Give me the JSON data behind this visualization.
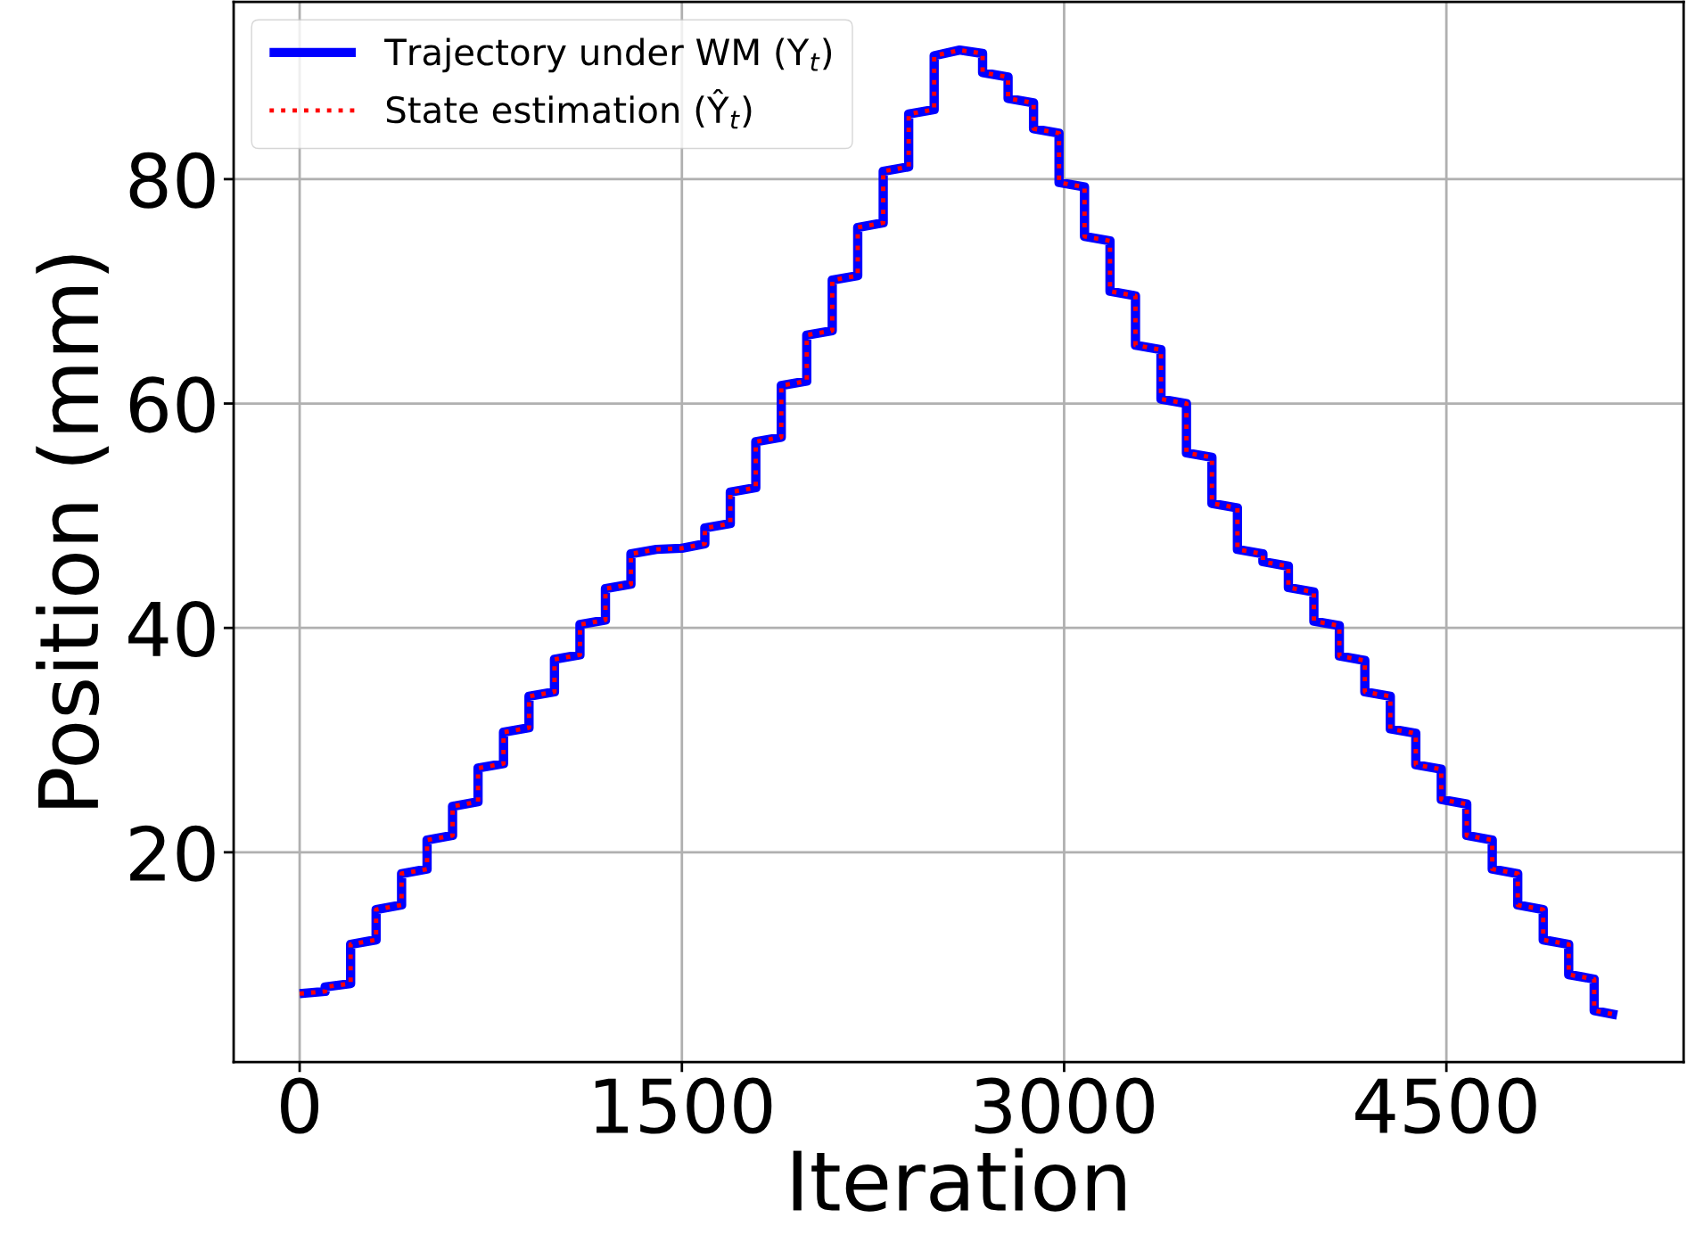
{
  "chart_data": {
    "type": "line",
    "xlabel": "Iteration",
    "ylabel": "Position (mm)",
    "x": [
      0,
      100,
      100,
      200,
      200,
      300,
      300,
      400,
      400,
      500,
      500,
      600,
      600,
      700,
      700,
      800,
      800,
      900,
      900,
      1000,
      1000,
      1100,
      1100,
      1200,
      1200,
      1300,
      1300,
      1400,
      1500,
      1590,
      1590,
      1690,
      1690,
      1790,
      1790,
      1890,
      1890,
      1990,
      1990,
      2090,
      2090,
      2190,
      2190,
      2290,
      2290,
      2390,
      2390,
      2490,
      2490,
      2590,
      2680,
      2680,
      2780,
      2780,
      2880,
      2880,
      2980,
      2980,
      3080,
      3080,
      3180,
      3180,
      3280,
      3280,
      3380,
      3380,
      3480,
      3480,
      3580,
      3580,
      3680,
      3680,
      3780,
      3780,
      3880,
      3880,
      3980,
      3980,
      4080,
      4080,
      4180,
      4180,
      4280,
      4280,
      4380,
      4380,
      4480,
      4480,
      4580,
      4580,
      4680,
      4680,
      4780,
      4780,
      4880,
      4880,
      4980,
      4980,
      5080,
      5080,
      5170
    ],
    "series": [
      {
        "name": "Trajectory under WM (Y$_{t}$)",
        "color": "#0000ff",
        "line_style": "solid",
        "values": [
          7.4,
          7.6,
          8.0,
          8.3,
          11.8,
          12.2,
          14.9,
          15.3,
          18.1,
          18.5,
          21.1,
          21.5,
          24.1,
          24.5,
          27.5,
          27.9,
          30.7,
          31.1,
          33.9,
          34.3,
          37.2,
          37.6,
          40.3,
          40.7,
          43.5,
          43.9,
          46.6,
          47.0,
          47.1,
          47.5,
          48.9,
          49.3,
          52.1,
          52.5,
          56.6,
          57.0,
          61.6,
          62.0,
          66.1,
          66.5,
          71.0,
          71.4,
          75.7,
          76.1,
          80.7,
          81.1,
          85.8,
          86.2,
          91.0,
          91.5,
          91.2,
          89.5,
          89.1,
          87.2,
          86.8,
          84.5,
          84.1,
          79.7,
          79.3,
          74.9,
          74.5,
          70.0,
          69.6,
          65.2,
          64.8,
          60.4,
          60.0,
          55.6,
          55.2,
          51.1,
          50.7,
          47.0,
          46.6,
          45.9,
          45.5,
          43.6,
          43.2,
          40.6,
          40.2,
          37.5,
          37.1,
          34.3,
          33.9,
          31.0,
          30.6,
          27.8,
          27.4,
          24.7,
          24.3,
          21.5,
          21.1,
          18.5,
          18.1,
          15.3,
          14.9,
          12.2,
          11.8,
          9.1,
          8.7,
          5.9,
          5.5
        ]
      },
      {
        "name": "State estimation (Ŷ$_{t}$)",
        "color": "#ff0000",
        "line_style": "dotted",
        "values": [
          7.4,
          7.6,
          8.0,
          8.3,
          11.8,
          12.2,
          14.9,
          15.3,
          18.1,
          18.5,
          21.1,
          21.5,
          24.1,
          24.5,
          27.5,
          27.9,
          30.7,
          31.1,
          33.9,
          34.3,
          37.2,
          37.6,
          40.3,
          40.7,
          43.5,
          43.9,
          46.6,
          47.0,
          47.1,
          47.5,
          48.9,
          49.3,
          52.1,
          52.5,
          56.6,
          57.0,
          61.6,
          62.0,
          66.1,
          66.5,
          71.0,
          71.4,
          75.7,
          76.1,
          80.7,
          81.1,
          85.8,
          86.2,
          91.0,
          91.5,
          91.2,
          89.5,
          89.1,
          87.2,
          86.8,
          84.5,
          84.1,
          79.7,
          79.3,
          74.9,
          74.5,
          70.0,
          69.6,
          65.2,
          64.8,
          60.4,
          60.0,
          55.6,
          55.2,
          51.1,
          50.7,
          47.0,
          46.6,
          45.9,
          45.5,
          43.6,
          43.2,
          40.6,
          40.2,
          37.5,
          37.1,
          34.3,
          33.9,
          31.0,
          30.6,
          27.8,
          27.4,
          24.7,
          24.3,
          21.5,
          21.1,
          18.5,
          18.1,
          15.3,
          14.9,
          12.2,
          11.8,
          9.1,
          8.7,
          5.9,
          5.5
        ]
      }
    ],
    "xlim": [
      -259,
      5431
    ],
    "ylim": [
      1.3,
      95.8
    ],
    "xticks": [
      0,
      1500,
      3000,
      4500
    ],
    "yticks": [
      20,
      40,
      60,
      80
    ],
    "grid": true,
    "legend": "top left",
    "marker": "none"
  }
}
